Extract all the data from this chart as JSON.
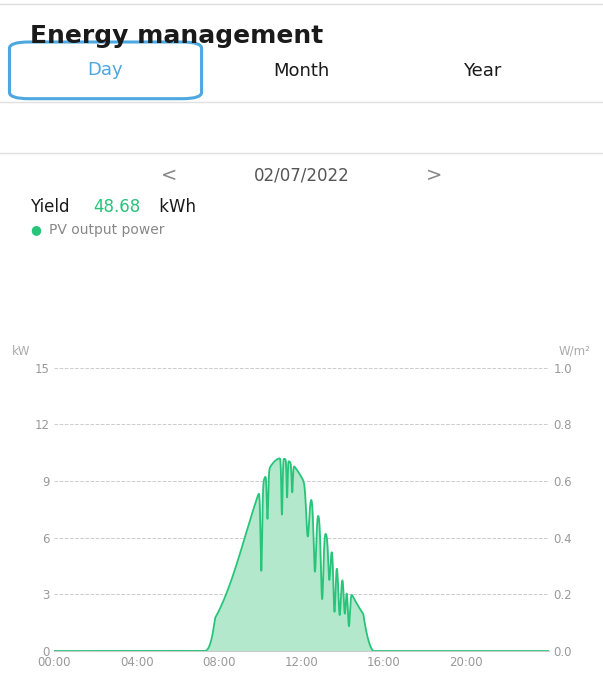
{
  "title": "Energy management",
  "date": "02/07/2022",
  "yield_value": "48.68",
  "yield_label": "Yield",
  "yield_unit": "kWh",
  "legend_label": "PV output power",
  "button_day": "Day",
  "button_month": "Month",
  "button_year": "Year",
  "xlabel_ticks": [
    "00:00",
    "04:00",
    "08:00",
    "12:00",
    "16:00",
    "20:00"
  ],
  "xtick_positions": [
    0,
    4,
    8,
    12,
    16,
    20
  ],
  "ylabel_left": "kW",
  "ylabel_right": "W/m²",
  "ylim_left": [
    0,
    15
  ],
  "ylim_right": [
    0,
    1.0
  ],
  "yticks_left": [
    0,
    3,
    6,
    9,
    12,
    15
  ],
  "yticks_right": [
    0.0,
    0.2,
    0.4,
    0.6,
    0.8,
    1.0
  ],
  "fill_color": "#b3e8cc",
  "line_color": "#27c47a",
  "background_color": "#ffffff",
  "grid_color": "#cccccc",
  "title_color": "#1a1a1a",
  "yield_number_color": "#27c47a",
  "legend_dot_color": "#27c47a",
  "axis_label_color": "#aaaaaa",
  "tick_color": "#999999",
  "button_day_color": "#4da8e0",
  "button_day_border": "#4da8e0",
  "nav_arrow_color": "#888888",
  "date_color": "#555555",
  "separator_color": "#e0e0e0"
}
